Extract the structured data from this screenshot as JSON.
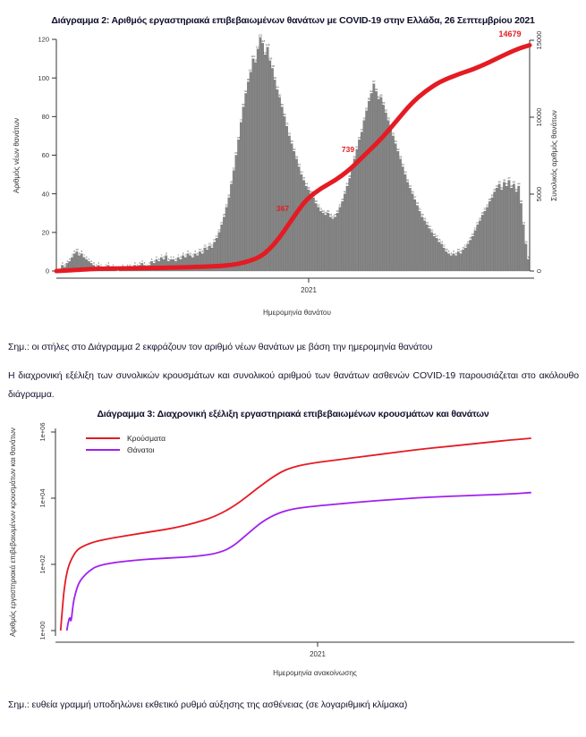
{
  "document": {
    "notes": {
      "chart2_note": "Σημ.: οι στήλες στο Διάγραμμα 2 εκφράζουν τον αριθμό νέων θανάτων με βάση την ημερομηνία θανάτου",
      "chart3_note": "Σημ.: ευθεία γραμμή υποδηλώνει εκθετικό ρυθμό αύξησης της ασθένειας (σε λογαριθμική κλίμακα)"
    },
    "paragraphs": {
      "intro": "Η διαχρονική εξέλιξη των συνολικών κρουσμάτων και συνολικού αριθμού των θανάτων ασθενών COVID-19 παρουσιάζεται στο ακόλουθο διάγραμμα."
    }
  },
  "chart_data": [
    {
      "type": "bar",
      "title": "Διάγραμμα 2: Αριθμός εργαστηριακά επιβεβαιωμένων θανάτων με COVID-19 στην Ελλάδα, 26 Σεπτεμβρίου 2021",
      "ylabel_left": "Αριθμός νέων θανάτων",
      "ylabel_right": "Συνολικός αριθμός θανάτων",
      "xlabel": "Ημερομηνία θανάτου",
      "x_ticks": [
        "2021"
      ],
      "y_left_ticks": [
        0,
        20,
        40,
        60,
        80,
        100,
        120
      ],
      "y_left_lim": [
        0,
        120
      ],
      "y_right_ticks": [
        0,
        5000,
        10000,
        15000
      ],
      "y_right_lim": [
        0,
        15000
      ],
      "bar_color": "#858585",
      "bar_edge_color": "#5c5c5c",
      "bar_label_color": "#474747",
      "line_color": "#e41b23",
      "axis_color": "#333333",
      "bars": [
        0,
        1,
        3,
        2,
        4,
        5,
        7,
        9,
        10,
        8,
        9,
        7,
        6,
        5,
        4,
        3,
        2,
        3,
        2,
        1,
        2,
        3,
        1,
        2,
        1,
        0,
        1,
        2,
        1,
        2,
        2,
        1,
        3,
        2,
        3,
        4,
        3,
        2,
        3,
        5,
        4,
        6,
        5,
        7,
        6,
        8,
        5,
        6,
        6,
        5,
        7,
        6,
        8,
        7,
        9,
        8,
        7,
        9,
        8,
        10,
        9,
        12,
        11,
        13,
        12,
        15,
        17,
        20,
        24,
        28,
        33,
        38,
        45,
        52,
        60,
        68,
        77,
        85,
        92,
        98,
        103,
        110,
        108,
        115,
        121,
        118,
        112,
        116,
        109,
        105,
        99,
        94,
        90,
        85,
        80,
        75,
        70,
        66,
        62,
        58,
        54,
        50,
        47,
        44,
        42,
        40,
        38,
        35,
        33,
        31,
        30,
        29,
        30,
        28,
        27,
        28,
        30,
        33,
        36,
        40,
        44,
        48,
        53,
        58,
        63,
        68,
        72,
        78,
        83,
        88,
        92,
        97,
        93,
        89,
        90,
        86,
        82,
        78,
        74,
        70,
        66,
        62,
        58,
        54,
        50,
        46,
        43,
        40,
        37,
        34,
        31,
        28,
        26,
        24,
        22,
        20,
        18,
        17,
        15,
        14,
        12,
        10,
        9,
        8,
        9,
        8,
        10,
        9,
        11,
        12,
        14,
        16,
        18,
        21,
        24,
        26,
        29,
        31,
        33,
        36,
        38,
        41,
        43,
        45,
        42,
        46,
        44,
        47,
        43,
        45,
        41,
        44,
        35,
        24,
        14,
        6
      ],
      "series": [
        {
          "name": "Συνολικός αριθμός θανάτων",
          "type": "line",
          "points": [
            [
              0,
              0
            ],
            [
              0.04,
              60
            ],
            [
              0.08,
              140
            ],
            [
              0.15,
              175
            ],
            [
              0.22,
              200
            ],
            [
              0.3,
              260
            ],
            [
              0.36,
              340
            ],
            [
              0.4,
              560
            ],
            [
              0.43,
              900
            ],
            [
              0.45,
              1400
            ],
            [
              0.47,
              2100
            ],
            [
              0.49,
              3000
            ],
            [
              0.51,
              3900
            ],
            [
              0.53,
              4700
            ],
            [
              0.56,
              5400
            ],
            [
              0.59,
              5900
            ],
            [
              0.62,
              6600
            ],
            [
              0.64,
              7200
            ],
            [
              0.66,
              7800
            ],
            [
              0.69,
              8700
            ],
            [
              0.72,
              9800
            ],
            [
              0.75,
              10900
            ],
            [
              0.78,
              11700
            ],
            [
              0.81,
              12300
            ],
            [
              0.85,
              12800
            ],
            [
              0.88,
              13100
            ],
            [
              0.91,
              13500
            ],
            [
              0.95,
              14100
            ],
            [
              0.98,
              14500
            ],
            [
              1,
              14679
            ]
          ]
        }
      ],
      "annotations": [
        {
          "label": "367",
          "x": 316,
          "y": 236,
          "behind_line": true
        },
        {
          "label": "739",
          "x": 389,
          "y": 170,
          "behind_line": true
        },
        {
          "label": "14679",
          "x": 570,
          "y": 41,
          "behind_line": false
        }
      ]
    },
    {
      "type": "line",
      "title": "Διάγραμμα 3: Διαχρονική εξέλιξη εργαστηριακά επιβεβαιωμένων κρουσμάτων και θανάτων",
      "ylabel": "Αριθμός εργαστηριακά επιβεβαιωμένων κρουσμάτων και θανάτων",
      "xlabel": "Ημερομηνία ανακοίνωσης",
      "x_ticks": [
        "2021"
      ],
      "y_ticks": [
        "1e+00",
        "1e+02",
        "1e+04",
        "1e+06"
      ],
      "y_scale": "log10",
      "ylim_log": [
        0,
        6
      ],
      "legend_position": "top-left",
      "axis_color": "#333333",
      "series": [
        {
          "name": "Κρούσματα",
          "color": "#e41b23",
          "points_log10": [
            [
              0.01,
              0
            ],
            [
              0.014,
              0.8
            ],
            [
              0.018,
              1.4
            ],
            [
              0.024,
              1.9
            ],
            [
              0.032,
              2.2
            ],
            [
              0.042,
              2.45
            ],
            [
              0.06,
              2.6
            ],
            [
              0.08,
              2.7
            ],
            [
              0.11,
              2.8
            ],
            [
              0.15,
              2.9
            ],
            [
              0.19,
              3.0
            ],
            [
              0.23,
              3.1
            ],
            [
              0.27,
              3.25
            ],
            [
              0.31,
              3.45
            ],
            [
              0.35,
              3.8
            ],
            [
              0.39,
              4.3
            ],
            [
              0.43,
              4.75
            ],
            [
              0.46,
              4.95
            ],
            [
              0.5,
              5.07
            ],
            [
              0.55,
              5.17
            ],
            [
              0.6,
              5.27
            ],
            [
              0.65,
              5.37
            ],
            [
              0.7,
              5.47
            ],
            [
              0.75,
              5.55
            ],
            [
              0.8,
              5.63
            ],
            [
              0.85,
              5.71
            ],
            [
              0.88,
              5.76
            ],
            [
              0.92,
              5.81
            ]
          ]
        },
        {
          "name": "Θάνατοι",
          "color": "#a020f0",
          "points_log10": [
            [
              0.022,
              0
            ],
            [
              0.027,
              0.5
            ],
            [
              0.03,
              0.2
            ],
            [
              0.034,
              0.8
            ],
            [
              0.038,
              1.1
            ],
            [
              0.044,
              1.4
            ],
            [
              0.052,
              1.6
            ],
            [
              0.065,
              1.8
            ],
            [
              0.08,
              1.95
            ],
            [
              0.11,
              2.05
            ],
            [
              0.15,
              2.12
            ],
            [
              0.19,
              2.17
            ],
            [
              0.23,
              2.2
            ],
            [
              0.27,
              2.24
            ],
            [
              0.31,
              2.32
            ],
            [
              0.34,
              2.5
            ],
            [
              0.37,
              2.9
            ],
            [
              0.4,
              3.3
            ],
            [
              0.43,
              3.55
            ],
            [
              0.46,
              3.68
            ],
            [
              0.5,
              3.76
            ],
            [
              0.55,
              3.83
            ],
            [
              0.6,
              3.9
            ],
            [
              0.65,
              3.96
            ],
            [
              0.7,
              4.01
            ],
            [
              0.75,
              4.05
            ],
            [
              0.8,
              4.08
            ],
            [
              0.85,
              4.11
            ],
            [
              0.88,
              4.13
            ],
            [
              0.92,
              4.17
            ]
          ]
        }
      ]
    }
  ]
}
